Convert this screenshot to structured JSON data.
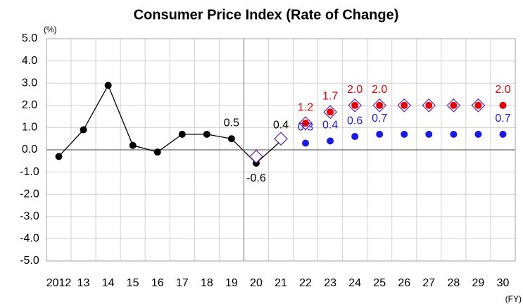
{
  "chart_data": {
    "type": "line",
    "title": "Consumer Price Index (Rate of Change)",
    "y_unit": "(%)",
    "x_unit": "(FY)",
    "categories": [
      "2012",
      "13",
      "14",
      "15",
      "16",
      "17",
      "18",
      "19",
      "20",
      "21",
      "22",
      "23",
      "24",
      "25",
      "26",
      "27",
      "28",
      "29",
      "30"
    ],
    "ylim": [
      -5,
      5
    ],
    "yticks": [
      {
        "value": -5,
        "label": "-5.0"
      },
      {
        "value": -4,
        "label": "-4.0"
      },
      {
        "value": -3,
        "label": "-3.0"
      },
      {
        "value": -2,
        "label": "-2.0"
      },
      {
        "value": -1,
        "label": "-1.0"
      },
      {
        "value": 0,
        "label": "0.0"
      },
      {
        "value": 1,
        "label": "1.0"
      },
      {
        "value": 2,
        "label": "2.0"
      },
      {
        "value": 3,
        "label": "3.0"
      },
      {
        "value": 4,
        "label": "4.0"
      },
      {
        "value": 5,
        "label": "5.0"
      }
    ],
    "grid": true,
    "series": [
      {
        "color": "#000000",
        "marker": "circle",
        "line": true,
        "values": [
          -0.3,
          0.9,
          2.9,
          0.2,
          -0.1,
          0.7,
          0.7,
          0.5,
          -0.6,
          0.4,
          null,
          null,
          null,
          null,
          null,
          null,
          null,
          null,
          null
        ],
        "value_labels": [
          null,
          null,
          null,
          null,
          null,
          null,
          null,
          "0.5",
          "-0.6",
          "0.4",
          null,
          null,
          null,
          null,
          null,
          null,
          null,
          null,
          null
        ]
      },
      {
        "color": "#7030a0",
        "marker": "diamond",
        "line": false,
        "values": [
          null,
          null,
          null,
          null,
          null,
          null,
          null,
          null,
          -0.3,
          0.5,
          1.2,
          1.7,
          2.0,
          2.0,
          2.0,
          2.0,
          2.0,
          2.0,
          null
        ]
      },
      {
        "color": "#e60000",
        "marker": "circle",
        "line": false,
        "values": [
          null,
          null,
          null,
          null,
          null,
          null,
          null,
          null,
          null,
          null,
          1.2,
          1.7,
          2.0,
          2.0,
          2.0,
          2.0,
          2.0,
          2.0,
          2.0
        ],
        "value_labels": [
          null,
          null,
          null,
          null,
          null,
          null,
          null,
          null,
          null,
          null,
          "1.2",
          "1.7",
          "2.0",
          "2.0",
          null,
          null,
          null,
          null,
          "2.0"
        ]
      },
      {
        "color": "#1a1ae6",
        "marker": "circle",
        "line": false,
        "values": [
          null,
          null,
          null,
          null,
          null,
          null,
          null,
          null,
          null,
          null,
          0.3,
          0.4,
          0.6,
          0.7,
          0.7,
          0.7,
          0.7,
          0.7,
          0.7
        ],
        "value_labels": [
          null,
          null,
          null,
          null,
          null,
          null,
          null,
          null,
          null,
          null,
          "0.3",
          "0.4",
          "0.6",
          "0.7",
          null,
          null,
          null,
          null,
          "0.7"
        ]
      }
    ]
  }
}
